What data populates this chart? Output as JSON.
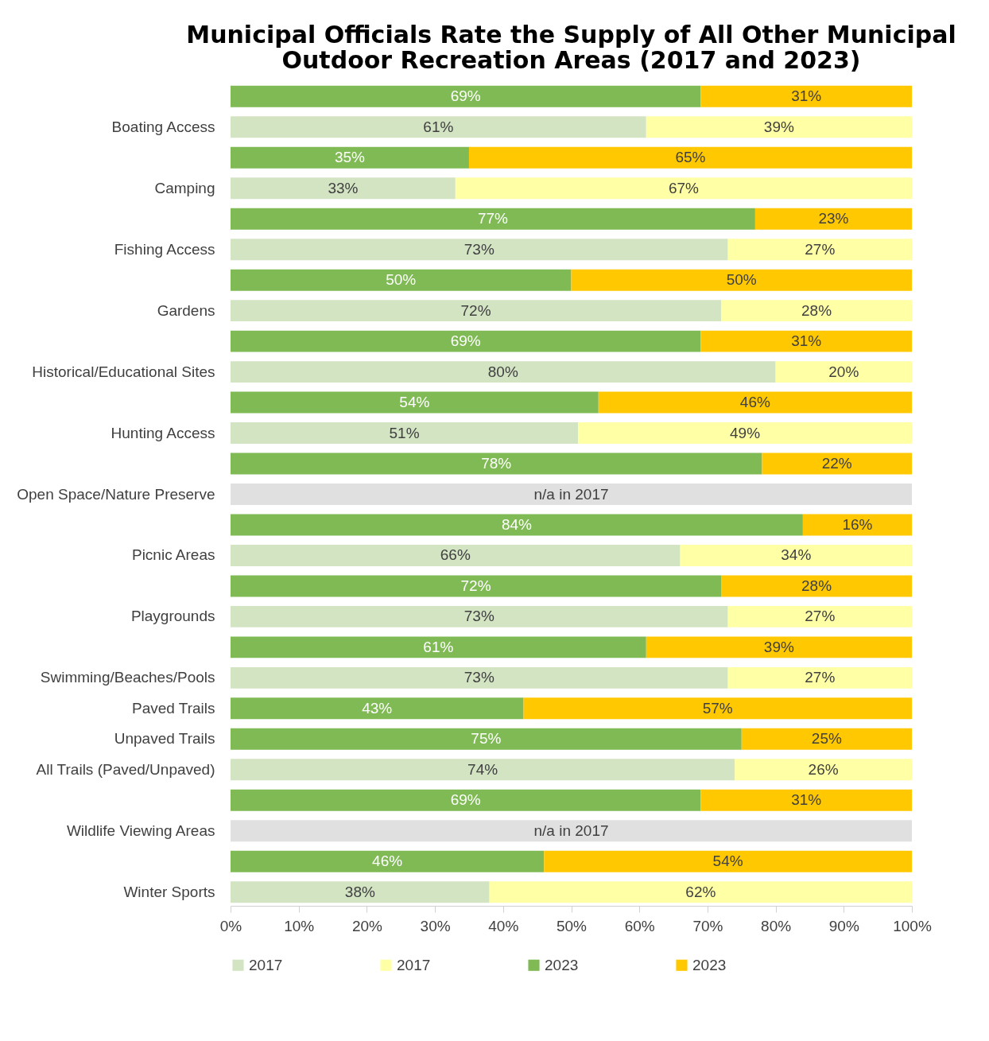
{
  "chart_data": {
    "type": "bar",
    "orientation": "horizontal",
    "stacked": true,
    "title": "Municipal Officials Rate the Supply of All Other Municipal Outdoor Recreation Areas (2017 and 2023)",
    "categories": [
      null,
      "Boating Access",
      null,
      "Camping",
      null,
      "Fishing Access",
      null,
      "Gardens",
      null,
      "Historical/Educational Sites",
      null,
      "Hunting Access",
      null,
      "Open Space/Nature Preserve",
      null,
      "Picnic Areas",
      null,
      "Playgrounds",
      null,
      "Swimming/Beaches/Pools",
      "Paved Trails",
      "Unpaved Trails",
      "All Trails (Paved/Unpaved)",
      null,
      "Wildlife Viewing Areas",
      null,
      "Winter Sports"
    ],
    "series": [
      {
        "name": "2017",
        "color": "#d3e4c3",
        "values": [
          null,
          61,
          null,
          33,
          null,
          73,
          null,
          72,
          null,
          80,
          null,
          51,
          null,
          null,
          null,
          66,
          null,
          73,
          null,
          73,
          null,
          null,
          74,
          null,
          null,
          null,
          38
        ],
        "value_labels": [
          null,
          "61%",
          null,
          "33%",
          null,
          "73%",
          null,
          "72%",
          null,
          "80%",
          null,
          "51%",
          null,
          null,
          null,
          "66%",
          null,
          "73%",
          null,
          "73%",
          null,
          null,
          "74%",
          null,
          null,
          null,
          "38%"
        ]
      },
      {
        "name": "2017",
        "color": "#ffffa6",
        "values": [
          null,
          39,
          null,
          67,
          null,
          27,
          null,
          28,
          null,
          20,
          null,
          49,
          null,
          null,
          null,
          34,
          null,
          27,
          null,
          27,
          null,
          null,
          26,
          null,
          null,
          null,
          62
        ],
        "value_labels": [
          null,
          "39%",
          null,
          "67%",
          null,
          "27%",
          null,
          "28%",
          null,
          "20%",
          null,
          "49%",
          null,
          null,
          null,
          "34%",
          null,
          "27%",
          null,
          "27%",
          null,
          null,
          "26%",
          null,
          null,
          null,
          "62%"
        ]
      },
      {
        "name": "2023",
        "color": "#7fba55",
        "values": [
          69,
          null,
          35,
          null,
          77,
          null,
          50,
          null,
          69,
          null,
          54,
          null,
          78,
          null,
          84,
          null,
          72,
          null,
          61,
          null,
          43,
          75,
          null,
          69,
          null,
          46,
          null
        ],
        "value_labels": [
          "69%",
          null,
          "35%",
          null,
          "77%",
          null,
          "50%",
          null,
          "69%",
          null,
          "54%",
          null,
          "78%",
          null,
          "84%",
          null,
          "72%",
          null,
          "61%",
          null,
          "43%",
          "75%",
          null,
          "69%",
          null,
          "46%",
          null
        ]
      },
      {
        "name": "2023",
        "color": "#ffc800",
        "values": [
          31,
          null,
          65,
          null,
          23,
          null,
          50,
          null,
          31,
          null,
          46,
          null,
          22,
          null,
          16,
          null,
          28,
          null,
          39,
          null,
          57,
          25,
          null,
          31,
          null,
          54,
          null
        ],
        "value_labels": [
          "31%",
          null,
          "65%",
          null,
          "23%",
          null,
          "50%",
          null,
          "31%",
          null,
          "46%",
          null,
          "22%",
          null,
          "16%",
          null,
          "28%",
          null,
          "39%",
          null,
          "57%",
          "25%",
          null,
          "31%",
          null,
          "54%",
          null
        ]
      },
      {
        "color": "#e0e0e0",
        "values": [
          null,
          null,
          null,
          null,
          null,
          null,
          null,
          null,
          null,
          null,
          null,
          null,
          null,
          100,
          null,
          null,
          null,
          null,
          null,
          null,
          null,
          null,
          null,
          null,
          100,
          null,
          null
        ],
        "value_labels": [
          null,
          null,
          null,
          null,
          null,
          null,
          null,
          null,
          null,
          null,
          null,
          null,
          null,
          "n/a in 2017",
          null,
          null,
          null,
          null,
          null,
          null,
          null,
          null,
          null,
          null,
          "n/a in 2017",
          null,
          null
        ]
      }
    ],
    "xlim": [
      0,
      100
    ],
    "xticks": [
      {
        "value": 0,
        "label": "0%"
      },
      {
        "value": 10,
        "label": "10%"
      },
      {
        "value": 20,
        "label": "20%"
      },
      {
        "value": 30,
        "label": "30%"
      },
      {
        "value": 40,
        "label": "40%"
      },
      {
        "value": 50,
        "label": "50%"
      },
      {
        "value": 60,
        "label": "60%"
      },
      {
        "value": 70,
        "label": "70%"
      },
      {
        "value": 80,
        "label": "80%"
      },
      {
        "value": 90,
        "label": "90%"
      },
      {
        "value": 100,
        "label": "100%"
      }
    ],
    "legend": "bottom"
  }
}
